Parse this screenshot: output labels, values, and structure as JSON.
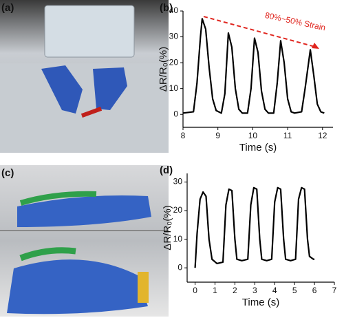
{
  "photo_labels": [
    "(a)",
    "(c)"
  ],
  "chart_data": [
    {
      "type": "line",
      "label": "(b)",
      "xlabel": "Time (s)",
      "ylabel": "ΔR/R₀(%)",
      "annotation": "80%~50% Strain",
      "color": "#000000",
      "annotation_color": "#e0261f",
      "x": [
        8.0,
        8.3,
        8.4,
        8.5,
        8.55,
        8.65,
        8.75,
        8.85,
        8.95,
        9.1,
        9.2,
        9.3,
        9.4,
        9.5,
        9.6,
        9.7,
        9.85,
        9.95,
        10.05,
        10.15,
        10.25,
        10.35,
        10.45,
        10.6,
        10.7,
        10.8,
        10.9,
        11.0,
        11.1,
        11.2,
        11.4,
        11.5,
        11.65,
        11.75,
        11.85,
        11.95,
        12.05
      ],
      "values": [
        0.5,
        1,
        12,
        30,
        37,
        33,
        18,
        6,
        1.5,
        0.5,
        8,
        31.5,
        26,
        10,
        2,
        0.5,
        0.5,
        10,
        29.5,
        24,
        9,
        2,
        0.5,
        0.5,
        12,
        28.5,
        20,
        6,
        1,
        0.5,
        1,
        10,
        25,
        15,
        4,
        1,
        0.5
      ],
      "xlim": [
        8,
        12.3
      ],
      "xticks": [
        8,
        9,
        10,
        11,
        12
      ],
      "ylim": [
        -5,
        40
      ],
      "yticks": [
        0,
        10,
        20,
        30,
        40
      ]
    },
    {
      "type": "line",
      "label": "(d)",
      "xlabel": "Time (s)",
      "ylabel": "ΔR/R₀(%)",
      "color": "#000000",
      "x": [
        0,
        0.1,
        0.25,
        0.4,
        0.55,
        0.7,
        0.85,
        1.1,
        1.4,
        1.55,
        1.7,
        1.85,
        2.0,
        2.1,
        2.35,
        2.65,
        2.8,
        2.95,
        3.1,
        3.25,
        3.35,
        3.6,
        3.85,
        4.0,
        4.15,
        4.3,
        4.45,
        4.55,
        4.8,
        5.05,
        5.2,
        5.35,
        5.5,
        5.65,
        5.75,
        5.95,
        6.0
      ],
      "values": [
        0,
        12,
        24,
        26.5,
        25,
        10,
        3,
        1.5,
        2,
        22,
        27.5,
        27,
        10,
        3,
        2.5,
        3,
        22,
        28,
        27.5,
        10,
        3,
        2.5,
        3,
        23,
        28,
        27.5,
        10,
        3,
        2.5,
        3,
        24,
        28,
        27.5,
        10,
        4,
        3,
        3
      ],
      "xlim": [
        -0.4,
        7
      ],
      "xticks": [
        0,
        1,
        2,
        3,
        4,
        5,
        6,
        7
      ],
      "ylim": [
        -5,
        33
      ],
      "yticks": [
        0,
        10,
        20,
        30
      ]
    }
  ]
}
